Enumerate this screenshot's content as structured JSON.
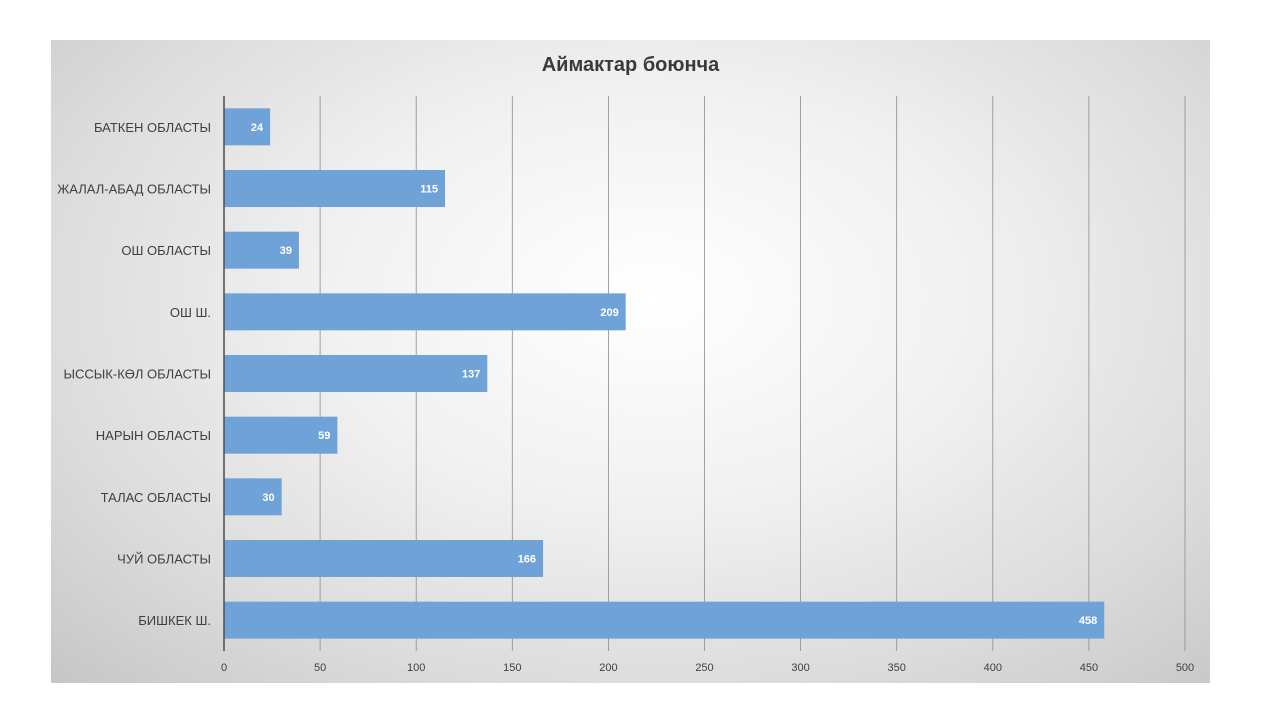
{
  "chart_data": {
    "type": "bar",
    "orientation": "horizontal",
    "title": "Аймактар боюнча",
    "categories": [
      "БАТКЕН ОБЛАСТЫ",
      "ЖАЛАЛ-АБАД ОБЛАСТЫ",
      "ОШ ОБЛАСТЫ",
      "ОШ Ш.",
      "ЫССЫК-КӨЛ ОБЛАСТЫ",
      "НАРЫН ОБЛАСТЫ",
      "ТАЛАС ОБЛАСТЫ",
      "ЧУЙ ОБЛАСТЫ",
      "БИШКЕК Ш."
    ],
    "values": [
      24,
      115,
      39,
      209,
      137,
      59,
      30,
      166,
      458
    ],
    "xlim": [
      0,
      500
    ],
    "xticks": [
      "0",
      "50",
      "100",
      "150",
      "200",
      "250",
      "300",
      "350",
      "400",
      "450",
      "500"
    ],
    "grid": true,
    "data_labels": true,
    "colors": {
      "bar": "#6fa3d8",
      "gridline": "#8c8c8c",
      "axis": "#555555"
    }
  }
}
